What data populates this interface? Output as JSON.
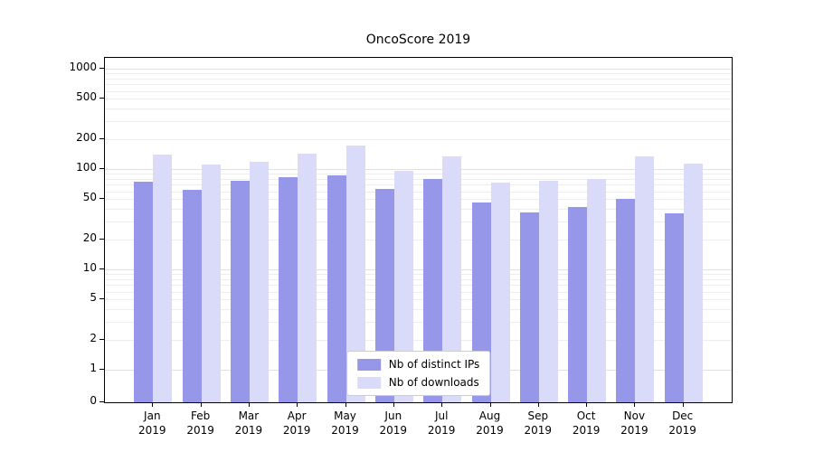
{
  "chart_data": {
    "type": "bar",
    "title": "OncoScore 2019",
    "year": "2019",
    "categories": [
      "Jan",
      "Feb",
      "Mar",
      "Apr",
      "May",
      "Jun",
      "Jul",
      "Aug",
      "Sep",
      "Oct",
      "Nov",
      "Dec"
    ],
    "series": [
      {
        "name": "Nb of distinct IPs",
        "color": "#9697e8",
        "values": [
          75,
          62,
          76,
          83,
          87,
          63,
          79,
          46,
          37,
          42,
          51,
          36
        ]
      },
      {
        "name": "Nb of downloads",
        "color": "#dadbf8",
        "values": [
          140,
          112,
          118,
          142,
          172,
          96,
          133,
          74,
          76,
          79,
          134,
          113
        ]
      }
    ],
    "yscale": "symlog",
    "yticks": [
      0,
      1,
      2,
      5,
      10,
      20,
      50,
      100,
      200,
      500,
      1000
    ],
    "ylim": [
      0,
      1400
    ],
    "grid": "horizontal-log-minor",
    "legend_position": "lower center"
  }
}
